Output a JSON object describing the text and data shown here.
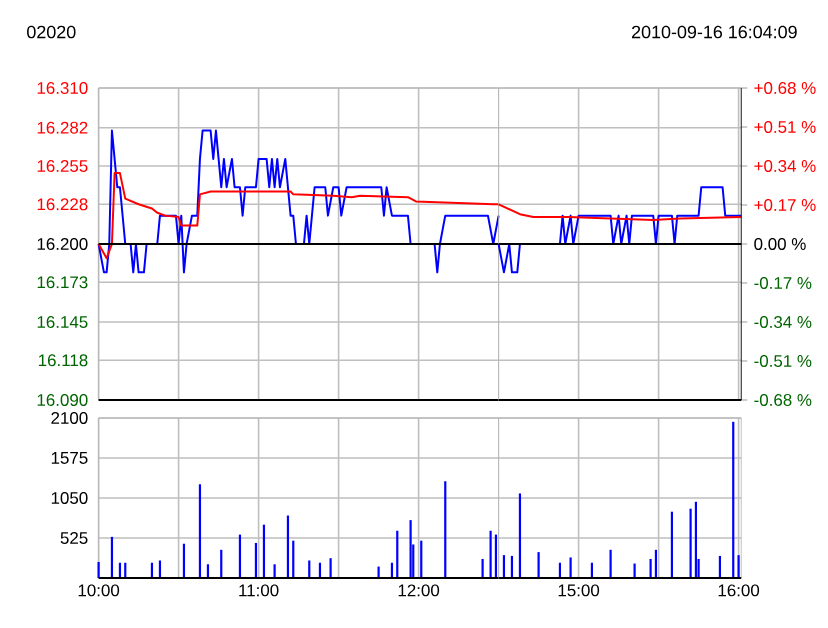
{
  "chart_data": [
    {
      "type": "line",
      "title": "02020",
      "series": [
        {
          "color": "#0000ff",
          "x": [
            "2010-09-16T10:00",
            "2010-09-16T10:02",
            "2010-09-16T10:03",
            "2010-09-16T10:04",
            "2010-09-16T10:05",
            "2010-09-16T10:06",
            "2010-09-16T10:07",
            "2010-09-16T10:08",
            "2010-09-16T10:09",
            "2010-09-16T10:10",
            "2010-09-16T10:12",
            "2010-09-16T10:13",
            "2010-09-16T10:14",
            "2010-09-16T10:15",
            "2010-09-16T10:17",
            "2010-09-16T10:18",
            "2010-09-16T10:22",
            "2010-09-16T10:23",
            "2010-09-16T10:29",
            "2010-09-16T10:30",
            "2010-09-16T10:31",
            "2010-09-16T10:32",
            "2010-09-16T10:33",
            "2010-09-16T10:35",
            "2010-09-16T10:37",
            "2010-09-16T10:38",
            "2010-09-16T10:39",
            "2010-09-16T10:42",
            "2010-09-16T10:43",
            "2010-09-16T10:44",
            "2010-09-16T10:45",
            "2010-09-16T10:46",
            "2010-09-16T10:47",
            "2010-09-16T10:48",
            "2010-09-16T10:50",
            "2010-09-16T10:51",
            "2010-09-16T10:53",
            "2010-09-16T10:54",
            "2010-09-16T10:55",
            "2010-09-16T10:59",
            "2010-09-16T11:00",
            "2010-09-16T11:03",
            "2010-09-16T11:04",
            "2010-09-16T11:05",
            "2010-09-16T11:06",
            "2010-09-16T11:07",
            "2010-09-16T11:08",
            "2010-09-16T11:10",
            "2010-09-16T11:12",
            "2010-09-16T11:13",
            "2010-09-16T11:14",
            "2010-09-16T11:17",
            "2010-09-16T11:18",
            "2010-09-16T11:19",
            "2010-09-16T11:20",
            "2010-09-16T11:21",
            "2010-09-16T11:25",
            "2010-09-16T11:26",
            "2010-09-16T11:28",
            "2010-09-16T11:30",
            "2010-09-16T11:31",
            "2010-09-16T11:33",
            "2010-09-16T11:46",
            "2010-09-16T11:47",
            "2010-09-16T11:48",
            "2010-09-16T11:50",
            "2010-09-16T11:56",
            "2010-09-16T11:57",
            "2010-09-16T12:06",
            "2010-09-16T12:07",
            "2010-09-16T12:08",
            "2010-09-16T12:10",
            "2010-09-16T12:26",
            "2010-09-16T12:28",
            "2010-09-16T12:30"
          ],
          "values": [
            16.2,
            16.18,
            16.18,
            16.2,
            16.28,
            16.26,
            16.24,
            16.24,
            16.22,
            16.2,
            16.2,
            16.18,
            16.2,
            16.18,
            16.18,
            16.2,
            16.2,
            16.22,
            16.22,
            16.2,
            16.22,
            16.18,
            16.2,
            16.22,
            16.22,
            16.26,
            16.28,
            16.28,
            16.26,
            16.28,
            16.26,
            16.24,
            16.26,
            16.24,
            16.26,
            16.24,
            16.24,
            16.22,
            16.24,
            16.24,
            16.26,
            16.26,
            16.24,
            16.26,
            16.24,
            16.26,
            16.24,
            16.26,
            16.22,
            16.22,
            16.2,
            16.2,
            16.22,
            16.2,
            16.22,
            16.24,
            16.24,
            16.22,
            16.24,
            16.24,
            16.22,
            16.24,
            16.24,
            16.22,
            16.24,
            16.22,
            16.22,
            16.2,
            16.2,
            16.18,
            16.2,
            16.22,
            16.22,
            16.2,
            16.22
          ]
        },
        {
          "color": "#ff0000",
          "x": [
            "2010-09-16T10:00",
            "2010-09-16T10:03",
            "2010-09-16T10:05",
            "2010-09-16T10:06",
            "2010-09-16T10:08",
            "2010-09-16T10:10",
            "2010-09-16T10:15",
            "2010-09-16T10:20",
            "2010-09-16T10:22",
            "2010-09-16T10:25",
            "2010-09-16T10:30",
            "2010-09-16T10:31",
            "2010-09-16T10:37",
            "2010-09-16T10:38",
            "2010-09-16T10:42",
            "2010-09-16T11:12",
            "2010-09-16T11:13",
            "2010-09-16T11:28",
            "2010-09-16T11:35",
            "2010-09-16T11:38",
            "2010-09-16T11:56",
            "2010-09-16T11:59",
            "2010-09-16T12:28",
            "2010-09-16T12:30"
          ],
          "values": [
            16.2,
            16.19,
            16.2,
            16.25,
            16.25,
            16.232,
            16.228,
            16.225,
            16.222,
            16.22,
            16.219,
            16.213,
            16.213,
            16.235,
            16.237,
            16.237,
            16.235,
            16.234,
            16.233,
            16.234,
            16.233,
            16.23,
            16.228,
            16.228
          ]
        }
      ],
      "xlim": [
        "2010-09-16T10:00",
        "2010-09-16T12:30"
      ],
      "xticks": [
        "2010-09-16T10:00",
        "2010-09-16T10:30",
        "2010-09-16T11:00",
        "2010-09-16T11:30",
        "2010-09-16T12:00"
      ],
      "ylim": [
        16.09,
        16.31
      ],
      "yticks": [
        {
          "value": 16.09,
          "label": "16.090"
        },
        {
          "value": 16.118,
          "label": "16.118"
        },
        {
          "value": 16.145,
          "label": "16.145"
        },
        {
          "value": 16.173,
          "label": "16.173"
        },
        {
          "value": 16.2,
          "label": "16.200"
        },
        {
          "value": 16.228,
          "label": "16.228"
        },
        {
          "value": 16.255,
          "label": "16.255"
        },
        {
          "value": 16.282,
          "label": "16.282"
        },
        {
          "value": 16.31,
          "label": "16.310"
        }
      ],
      "ref_lines": [
        {
          "axis": "y",
          "value": 16.2,
          "color": "#000000"
        }
      ],
      "grid": true,
      "tick_labels": "y"
    },
    {
      "type": "line",
      "subtitle": "2010-09-16 16:04:09",
      "series": [
        {
          "color": "#0000ff",
          "x": [
            "2010-09-16T14:30",
            "2010-09-16T14:32",
            "2010-09-16T14:34",
            "2010-09-16T14:35",
            "2010-09-16T14:37",
            "2010-09-16T14:38",
            "2010-09-16T14:53",
            "2010-09-16T14:54",
            "2010-09-16T14:55",
            "2010-09-16T14:57",
            "2010-09-16T14:58",
            "2010-09-16T15:00",
            "2010-09-16T15:12",
            "2010-09-16T15:13",
            "2010-09-16T15:15",
            "2010-09-16T15:16",
            "2010-09-16T15:18",
            "2010-09-16T15:19",
            "2010-09-16T15:20",
            "2010-09-16T15:28",
            "2010-09-16T15:29",
            "2010-09-16T15:30",
            "2010-09-16T15:35",
            "2010-09-16T15:36",
            "2010-09-16T15:37",
            "2010-09-16T15:45",
            "2010-09-16T15:46",
            "2010-09-16T15:54",
            "2010-09-16T15:55",
            "2010-09-16T16:01"
          ],
          "values": [
            16.2,
            16.18,
            16.2,
            16.18,
            16.18,
            16.2,
            16.2,
            16.22,
            16.2,
            16.22,
            16.2,
            16.22,
            16.22,
            16.2,
            16.22,
            16.2,
            16.22,
            16.2,
            16.22,
            16.22,
            16.2,
            16.22,
            16.22,
            16.2,
            16.22,
            16.22,
            16.24,
            16.24,
            16.22,
            16.22
          ]
        },
        {
          "color": "#ff0000",
          "x": [
            "2010-09-16T14:30",
            "2010-09-16T14:38",
            "2010-09-16T14:43",
            "2010-09-16T14:56",
            "2010-09-16T15:28",
            "2010-09-16T15:38",
            "2010-09-16T16:01"
          ],
          "values": [
            16.228,
            16.221,
            16.219,
            16.219,
            16.217,
            16.218,
            16.219
          ]
        }
      ],
      "xlim": [
        "2010-09-16T14:30",
        "2010-09-16T16:01"
      ],
      "xticks": [
        "2010-09-16T15:00",
        "2010-09-16T15:30",
        "2010-09-16T16:00"
      ],
      "ylim": [
        16.09,
        16.31
      ],
      "y2lim": [
        -0.68,
        0.68
      ],
      "y2ticks": [
        {
          "value": -0.68,
          "label": "-0.68 %"
        },
        {
          "value": -0.51,
          "label": "-0.51 %"
        },
        {
          "value": -0.34,
          "label": "-0.34 %"
        },
        {
          "value": -0.17,
          "label": "-0.17 %"
        },
        {
          "value": 0,
          "label": "0.00 %"
        },
        {
          "value": 0.17,
          "label": "+0.17 %"
        },
        {
          "value": 0.34,
          "label": "+0.34 %"
        },
        {
          "value": 0.51,
          "label": "+0.51 %"
        },
        {
          "value": 0.68,
          "label": "+0.68 %"
        }
      ],
      "ref_lines": [
        {
          "axis": "y",
          "value": 16.2,
          "color": "#000000"
        }
      ],
      "grid": true,
      "tick_labels": false
    },
    {
      "type": "bar",
      "color": "#0000ff",
      "x": [
        "2010-09-16T10:00",
        "2010-09-16T10:05",
        "2010-09-16T10:08",
        "2010-09-16T10:10",
        "2010-09-16T10:20",
        "2010-09-16T10:23",
        "2010-09-16T10:32",
        "2010-09-16T10:38",
        "2010-09-16T10:41",
        "2010-09-16T10:46",
        "2010-09-16T10:53",
        "2010-09-16T10:59",
        "2010-09-16T11:02",
        "2010-09-16T11:06",
        "2010-09-16T11:11",
        "2010-09-16T11:13",
        "2010-09-16T11:19",
        "2010-09-16T11:23",
        "2010-09-16T11:27",
        "2010-09-16T11:45",
        "2010-09-16T11:50",
        "2010-09-16T11:52",
        "2010-09-16T11:57",
        "2010-09-16T11:58",
        "2010-09-16T12:01",
        "2010-09-16T12:10",
        "2010-09-16T12:24",
        "2010-09-16T12:27",
        "2010-09-16T12:29"
      ],
      "values": [
        210,
        540,
        200,
        200,
        200,
        230,
        450,
        1230,
        180,
        370,
        570,
        460,
        700,
        180,
        820,
        490,
        230,
        200,
        260,
        150,
        200,
        620,
        760,
        440,
        490,
        1270,
        250,
        620,
        570
      ],
      "xlim": [
        "2010-09-16T10:00",
        "2010-09-16T12:30"
      ],
      "xticks": [
        {
          "value": "2010-09-16T10:00",
          "label": "10:00"
        },
        {
          "value": "2010-09-16T10:30",
          "label": null
        },
        {
          "value": "2010-09-16T11:00",
          "label": "11:00"
        },
        {
          "value": "2010-09-16T11:30",
          "label": null
        },
        {
          "value": "2010-09-16T12:00",
          "label": "12:00"
        }
      ],
      "ylim": [
        0,
        2100
      ],
      "yticks": [
        525,
        1050,
        1575,
        2100
      ],
      "grid": true
    },
    {
      "type": "bar",
      "color": "#0000ff",
      "x": [
        "2010-09-16T14:32",
        "2010-09-16T14:35",
        "2010-09-16T14:38",
        "2010-09-16T14:45",
        "2010-09-16T14:53",
        "2010-09-16T14:57",
        "2010-09-16T15:05",
        "2010-09-16T15:12",
        "2010-09-16T15:21",
        "2010-09-16T15:27",
        "2010-09-16T15:29",
        "2010-09-16T15:35",
        "2010-09-16T15:42",
        "2010-09-16T15:44",
        "2010-09-16T15:45",
        "2010-09-16T15:53",
        "2010-09-16T15:58",
        "2010-09-16T16:00"
      ],
      "values": [
        300,
        290,
        1110,
        340,
        200,
        270,
        200,
        370,
        190,
        250,
        370,
        870,
        910,
        1000,
        250,
        290,
        2050,
        300
      ],
      "xlim": [
        "2010-09-16T14:30",
        "2010-09-16T16:01"
      ],
      "xticks": [
        {
          "value": "2010-09-16T15:00",
          "label": "15:00"
        },
        {
          "value": "2010-09-16T15:30",
          "label": null
        },
        {
          "value": "2010-09-16T16:00",
          "label": "16:00"
        }
      ],
      "ylim": [
        0,
        2100
      ],
      "yticks": [
        525,
        1050,
        1575,
        2100
      ],
      "grid": true,
      "tick_labels": "x"
    }
  ]
}
